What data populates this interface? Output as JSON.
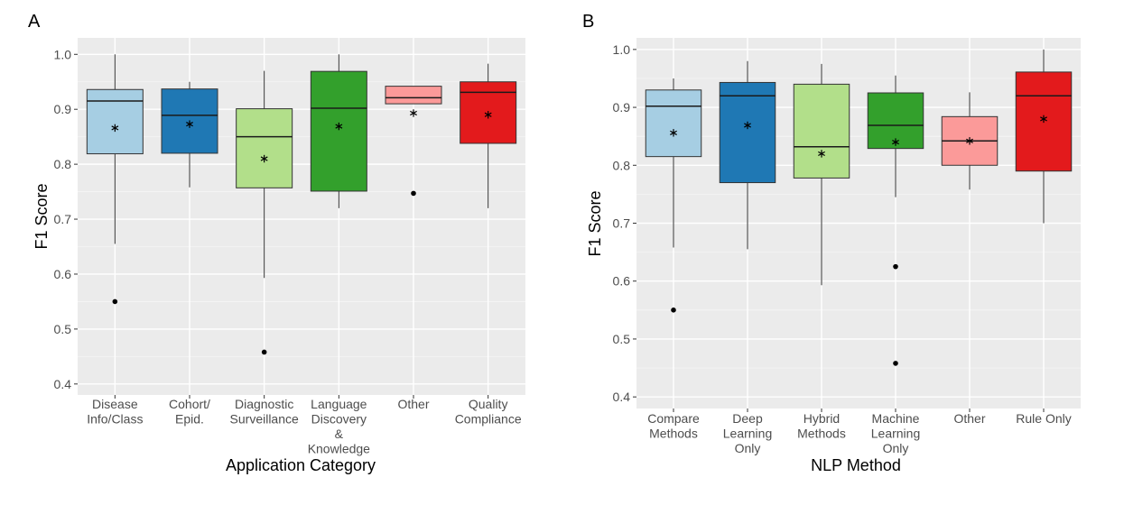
{
  "panels": [
    {
      "letter": "A",
      "chart_data": {
        "type": "boxplot",
        "title": "",
        "xlabel": "Application Category",
        "ylabel": "F1 Score",
        "ylim": [
          0.38,
          1.03
        ],
        "yticks": [
          0.4,
          0.5,
          0.6,
          0.7,
          0.8,
          0.9,
          1.0
        ],
        "ytick_labels": [
          "0.4",
          "0.5",
          "0.6",
          "0.7",
          "0.8",
          "0.9",
          "1.0"
        ],
        "grid": true,
        "categories": [
          {
            "label": [
              "Disease",
              "Info/Class"
            ],
            "q1": 0.819,
            "median": 0.915,
            "q3": 0.936,
            "whisker_low": 0.655,
            "whisker_high": 1.0,
            "mean": 0.866,
            "outliers": [
              0.55
            ],
            "color": "#a6cee3"
          },
          {
            "label": [
              "Cohort/",
              "Epid."
            ],
            "q1": 0.82,
            "median": 0.889,
            "q3": 0.937,
            "whisker_low": 0.758,
            "whisker_high": 0.95,
            "mean": 0.873,
            "outliers": [],
            "color": "#1f78b4"
          },
          {
            "label": [
              "Diagnostic",
              "Surveillance"
            ],
            "q1": 0.757,
            "median": 0.85,
            "q3": 0.901,
            "whisker_low": 0.593,
            "whisker_high": 0.97,
            "mean": 0.81,
            "outliers": [
              0.458
            ],
            "color": "#b2df8a"
          },
          {
            "label": [
              "Language",
              "Discovery",
              "&",
              "Knowledge"
            ],
            "q1": 0.751,
            "median": 0.902,
            "q3": 0.969,
            "whisker_low": 0.72,
            "whisker_high": 1.0,
            "mean": 0.869,
            "outliers": [],
            "color": "#33a02c"
          },
          {
            "label": [
              "Other"
            ],
            "q1": 0.91,
            "median": 0.921,
            "q3": 0.942,
            "whisker_low": 0.91,
            "whisker_high": 0.942,
            "mean": 0.893,
            "outliers": [
              0.747
            ],
            "color": "#fb9a99"
          },
          {
            "label": [
              "Quality",
              "Compliance"
            ],
            "q1": 0.838,
            "median": 0.931,
            "q3": 0.95,
            "whisker_low": 0.72,
            "whisker_high": 0.983,
            "mean": 0.89,
            "outliers": [],
            "color": "#e31a1c"
          }
        ]
      }
    },
    {
      "letter": "B",
      "chart_data": {
        "type": "boxplot",
        "title": "",
        "xlabel": "NLP Method",
        "ylabel": "F1 Score",
        "ylim": [
          0.38,
          1.02
        ],
        "yticks": [
          0.4,
          0.5,
          0.6,
          0.7,
          0.8,
          0.9,
          1.0
        ],
        "ytick_labels": [
          "0.4",
          "0.5",
          "0.6",
          "0.7",
          "0.8",
          "0.9",
          "1.0"
        ],
        "grid": true,
        "categories": [
          {
            "label": [
              "Compare",
              "Methods"
            ],
            "q1": 0.815,
            "median": 0.902,
            "q3": 0.93,
            "whisker_low": 0.658,
            "whisker_high": 0.95,
            "mean": 0.856,
            "outliers": [
              0.55
            ],
            "color": "#a6cee3"
          },
          {
            "label": [
              "Deep",
              "Learning",
              "Only"
            ],
            "q1": 0.77,
            "median": 0.92,
            "q3": 0.943,
            "whisker_low": 0.655,
            "whisker_high": 0.98,
            "mean": 0.869,
            "outliers": [],
            "color": "#1f78b4"
          },
          {
            "label": [
              "Hybrid",
              "Methods"
            ],
            "q1": 0.778,
            "median": 0.832,
            "q3": 0.94,
            "whisker_low": 0.593,
            "whisker_high": 0.975,
            "mean": 0.82,
            "outliers": [],
            "color": "#b2df8a"
          },
          {
            "label": [
              "Machine",
              "Learning",
              "Only"
            ],
            "q1": 0.829,
            "median": 0.869,
            "q3": 0.925,
            "whisker_low": 0.745,
            "whisker_high": 0.955,
            "mean": 0.84,
            "outliers": [
              0.625,
              0.458
            ],
            "color": "#33a02c"
          },
          {
            "label": [
              "Other"
            ],
            "q1": 0.8,
            "median": 0.842,
            "q3": 0.884,
            "whisker_low": 0.758,
            "whisker_high": 0.926,
            "mean": 0.842,
            "outliers": [],
            "color": "#fb9a99"
          },
          {
            "label": [
              "Rule Only"
            ],
            "q1": 0.79,
            "median": 0.92,
            "q3": 0.961,
            "whisker_low": 0.7,
            "whisker_high": 1.0,
            "mean": 0.88,
            "outliers": [],
            "color": "#e31a1c"
          }
        ]
      }
    }
  ]
}
